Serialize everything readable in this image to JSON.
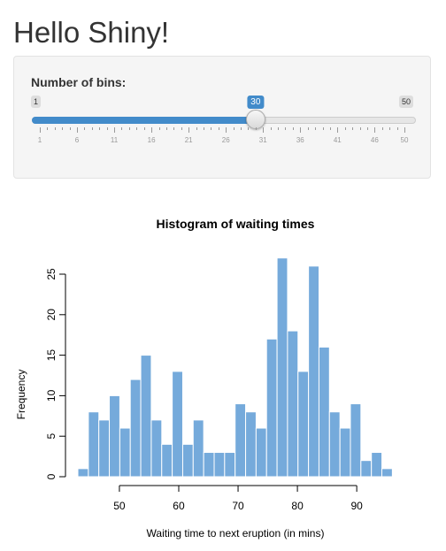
{
  "page": {
    "title": "Hello Shiny!"
  },
  "slider": {
    "label": "Number of bins:",
    "min": 1,
    "max": 50,
    "value": 30,
    "min_label": "1",
    "max_label": "50",
    "value_label": "30",
    "tick_labels": [
      "1",
      "6",
      "11",
      "16",
      "21",
      "26",
      "31",
      "36",
      "41",
      "46",
      "50"
    ],
    "accent_color": "#428bca"
  },
  "chart_data": {
    "type": "bar",
    "title": "Histogram of waiting times",
    "xlabel": "Waiting time to next eruption (in mins)",
    "ylabel": "Frequency",
    "bar_color": "#75aadb",
    "bin_width": 1.77,
    "bin_starts": [
      43.0,
      44.77,
      46.53,
      48.3,
      50.07,
      51.83,
      53.6,
      55.37,
      57.13,
      58.9,
      60.67,
      62.43,
      64.2,
      65.97,
      67.73,
      69.5,
      71.27,
      73.03,
      74.8,
      76.57,
      78.33,
      80.1,
      81.87,
      83.63,
      85.4,
      87.17,
      88.93,
      90.7,
      92.47,
      94.23
    ],
    "values": [
      1,
      8,
      7,
      10,
      6,
      12,
      15,
      7,
      4,
      13,
      4,
      7,
      3,
      3,
      3,
      9,
      8,
      6,
      17,
      27,
      18,
      13,
      26,
      16,
      8,
      6,
      9,
      2,
      3,
      1
    ],
    "xlim": [
      43,
      96
    ],
    "ylim": [
      0,
      27
    ],
    "x_ticks": [
      50,
      60,
      70,
      80,
      90
    ],
    "x_tick_labels": [
      "50",
      "60",
      "70",
      "80",
      "90"
    ],
    "y_ticks": [
      0,
      5,
      10,
      15,
      20,
      25
    ],
    "y_tick_labels": [
      "0",
      "5",
      "10",
      "15",
      "20",
      "25"
    ],
    "grid": false,
    "legend": "none"
  }
}
